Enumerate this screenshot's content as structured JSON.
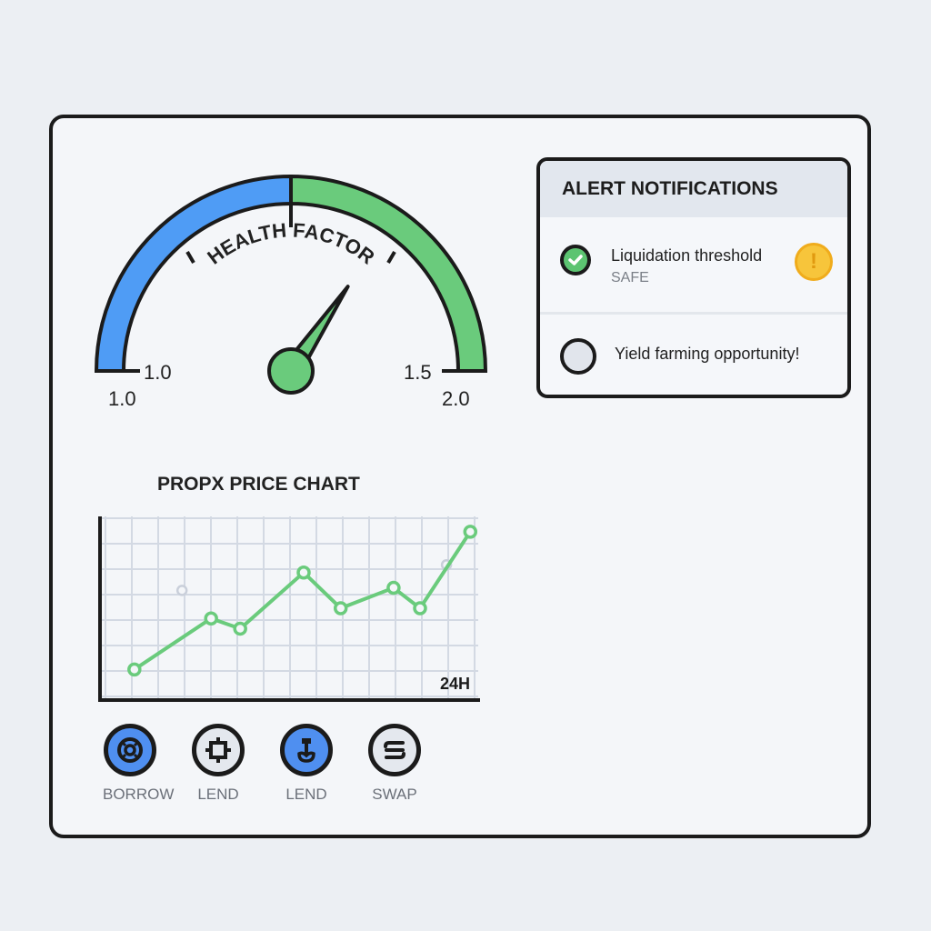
{
  "gauge": {
    "title": "HEALTH FACTOR",
    "inner_min_label": "1.0",
    "inner_mid_label": "1.5",
    "outer_min_label": "1.0",
    "outer_max_label": "2.0",
    "needle_angle_deg": 56,
    "colors": {
      "left": "#4f9cf5",
      "right": "#6acb7c"
    }
  },
  "alerts": {
    "title": "ALERT NOTIFICATIONS",
    "items": [
      {
        "text": "Liquidation threshold",
        "status": "SAFE",
        "icon": "check-circle-icon",
        "trailing_icon": "warning-icon"
      },
      {
        "text": "Yield farming opportunity!",
        "icon": "empty-circle-icon"
      }
    ]
  },
  "chart_data": {
    "type": "line",
    "title": "PROPX PRICE CHART",
    "annotation": "24H",
    "grid": true,
    "color": "#6acb7c",
    "series": [
      {
        "x": [
          1.3,
          4.2,
          5.3,
          7.7,
          9.1,
          11.1,
          12.1,
          14.0
        ],
        "y": [
          1.2,
          3.2,
          2.8,
          5.0,
          3.6,
          4.4,
          3.6,
          6.6
        ]
      }
    ],
    "ghost_points": {
      "x": [
        3.1,
        13.1
      ],
      "y": [
        4.3,
        5.3
      ]
    },
    "xlim": [
      0,
      14.3
    ],
    "ylim": [
      0,
      7.2
    ]
  },
  "actions": [
    {
      "label": "BORROW",
      "icon": "borrow-icon",
      "active": true
    },
    {
      "label": "LEND",
      "icon": "chip-icon",
      "active": false
    },
    {
      "label": "LEND",
      "icon": "lend-icon",
      "active": true
    },
    {
      "label": "SWAP",
      "icon": "swap-icon",
      "active": false
    }
  ]
}
